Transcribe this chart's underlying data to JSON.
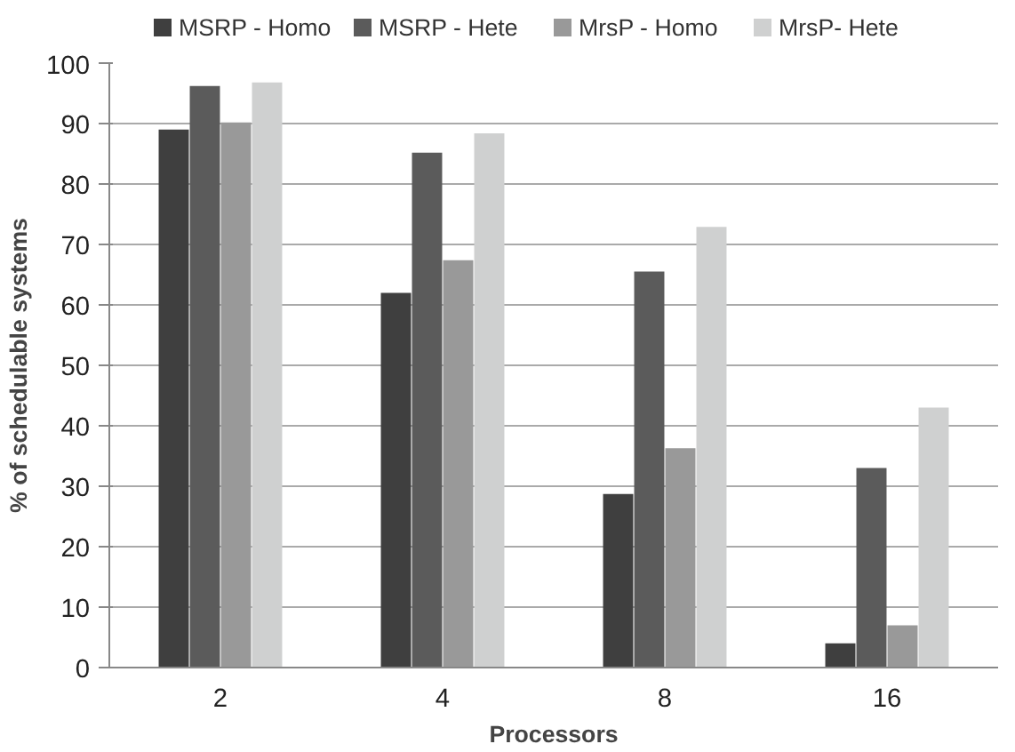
{
  "chart_data": {
    "type": "bar",
    "xlabel": "Processors",
    "ylabel": "% of schedulable systems",
    "categories": [
      "2",
      "4",
      "8",
      "16"
    ],
    "series": [
      {
        "name": "MSRP - Homo",
        "color": "#3f3f3f",
        "values": [
          89,
          62,
          28.7,
          4
        ]
      },
      {
        "name": "MSRP - Hete",
        "color": "#5b5b5b",
        "values": [
          96.2,
          85.2,
          65.5,
          33
        ]
      },
      {
        "name": "MrsP - Homo",
        "color": "#999999",
        "values": [
          90.2,
          67.4,
          36.3,
          7
        ]
      },
      {
        "name": "MrsP- Hete",
        "color": "#cfd0d0",
        "values": [
          96.8,
          88.4,
          72.9,
          43
        ]
      }
    ],
    "ylim": [
      0,
      100
    ],
    "yticks": [
      0,
      10,
      20,
      30,
      40,
      50,
      60,
      70,
      80,
      90,
      100
    ],
    "grid": "y",
    "legend": "top"
  }
}
